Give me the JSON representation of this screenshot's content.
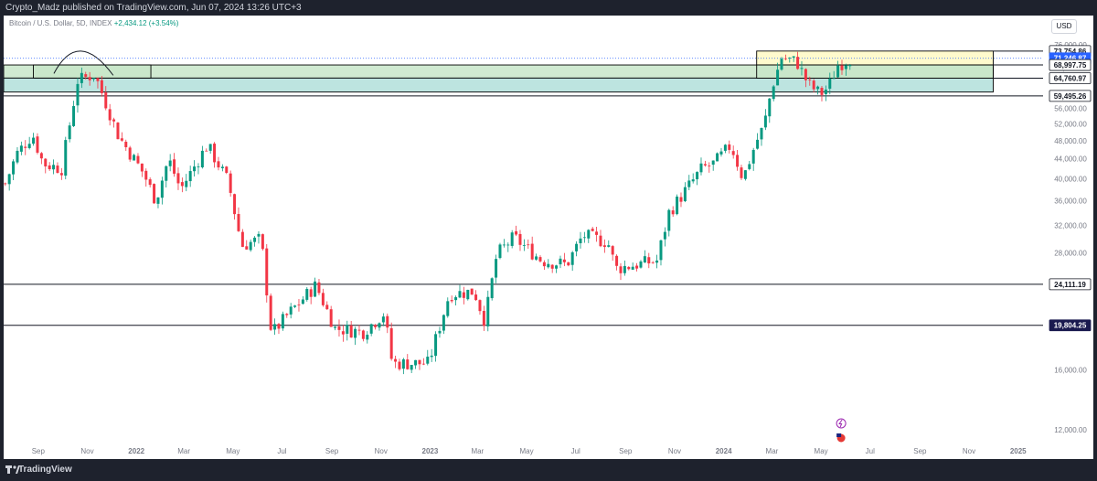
{
  "header": {
    "published_text": "Crypto_Madz published on TradingView.com, Jun 07, 2024 13:26 UTC+3"
  },
  "legend": {
    "symbol": "Bitcoin / U.S. Dollar, 5D, INDEX",
    "change": "+2,434.12 (+3.54%)",
    "change_color": "#089981"
  },
  "currency_button": "USD",
  "footer": {
    "brand": "TradingView"
  },
  "colors": {
    "up": "#089981",
    "down": "#f23645",
    "zone_green": "#c8e6c9",
    "zone_teal": "#b2dfdb",
    "zone_yellow": "#fff9c4",
    "price_label_blue": "#2962ff",
    "price_label_navy": "#1a1a4f"
  },
  "chart_data": {
    "type": "candlestick",
    "title": "Bitcoin / U.S. Dollar, 5D, INDEX",
    "ylim": [
      10000,
      78000
    ],
    "y_scale": "log",
    "y_ticks": [
      "76,000.00",
      "72,000.00",
      "68,000.00",
      "64,000.00",
      "60,000.00",
      "56,000.00",
      "52,000.00",
      "48,000.00",
      "44,000.00",
      "40,000.00",
      "36,000.00",
      "32,000.00",
      "28,000.00",
      "24,000.00",
      "20,000.00",
      "16,000.00",
      "12,000.00"
    ],
    "x_ticks": [
      "Sep",
      "Nov",
      "2022",
      "Mar",
      "May",
      "Jul",
      "Sep",
      "Nov",
      "2023",
      "Mar",
      "May",
      "Jul",
      "Sep",
      "Nov",
      "2024",
      "Mar",
      "May",
      "Jul",
      "Sep",
      "Nov",
      "2025"
    ],
    "x_range": [
      "2021-07-20",
      "2025-02-01"
    ],
    "price_levels": [
      {
        "label": "73,754.86",
        "value": 73754.86,
        "style": "box"
      },
      {
        "label": "71,246.87",
        "value": 71246.87,
        "style": "current"
      },
      {
        "label": "68,997.75",
        "value": 68997.75,
        "style": "box"
      },
      {
        "label": "64,760.97",
        "value": 64760.97,
        "style": "box"
      },
      {
        "label": "59,495.26",
        "value": 59495.26,
        "style": "box"
      },
      {
        "label": "24,111.19",
        "value": 24111.19,
        "style": "box"
      },
      {
        "label": "19,804.25",
        "value": 19804.25,
        "style": "navy"
      }
    ],
    "zones": [
      {
        "color": "green",
        "x0": "2021-07-20",
        "x1": "2024-12-01",
        "y_top": 69000,
        "y_bottom": 64800
      },
      {
        "color": "teal",
        "x0": "2021-07-20",
        "x1": "2024-12-01",
        "y_top": 64800,
        "y_bottom": 60600
      },
      {
        "color": "green",
        "x0": "2021-08-26",
        "x1": "2022-01-19",
        "y_top": 69000,
        "y_bottom": 64800
      },
      {
        "color": "yellow",
        "x0": "2024-02-11",
        "x1": "2024-12-01",
        "y_top": 73754.86,
        "y_bottom": 69000
      },
      {
        "color": "green",
        "x0": "2024-02-11",
        "x1": "2024-12-01",
        "y_top": 69000,
        "y_bottom": 64760.97
      }
    ],
    "anchors": [
      [
        "2021-07-22",
        39000
      ],
      [
        "2021-08-05",
        45000
      ],
      [
        "2021-08-25",
        49500
      ],
      [
        "2021-09-07",
        43000
      ],
      [
        "2021-09-30",
        42000
      ],
      [
        "2021-10-20",
        64000
      ],
      [
        "2021-11-10",
        66000
      ],
      [
        "2021-11-25",
        57000
      ],
      [
        "2021-12-10",
        49000
      ],
      [
        "2022-01-10",
        41000
      ],
      [
        "2022-01-25",
        36000
      ],
      [
        "2022-02-10",
        44000
      ],
      [
        "2022-02-25",
        38000
      ],
      [
        "2022-03-30",
        47000
      ],
      [
        "2022-04-25",
        39500
      ],
      [
        "2022-05-12",
        29000
      ],
      [
        "2022-06-05",
        30000
      ],
      [
        "2022-06-18",
        19000
      ],
      [
        "2022-07-10",
        21000
      ],
      [
        "2022-08-12",
        24000
      ],
      [
        "2022-09-05",
        19500
      ],
      [
        "2022-10-10",
        19200
      ],
      [
        "2022-11-05",
        21000
      ],
      [
        "2022-11-15",
        16500
      ],
      [
        "2022-12-30",
        16500
      ],
      [
        "2023-01-25",
        23000
      ],
      [
        "2023-02-25",
        23300
      ],
      [
        "2023-03-10",
        20200
      ],
      [
        "2023-03-25",
        27800
      ],
      [
        "2023-04-15",
        30200
      ],
      [
        "2023-05-20",
        27000
      ],
      [
        "2023-06-20",
        26500
      ],
      [
        "2023-07-10",
        30500
      ],
      [
        "2023-08-10",
        29500
      ],
      [
        "2023-08-20",
        26000
      ],
      [
        "2023-10-10",
        27000
      ],
      [
        "2023-10-25",
        34000
      ],
      [
        "2023-12-05",
        42000
      ],
      [
        "2023-12-20",
        43000
      ],
      [
        "2024-01-10",
        47000
      ],
      [
        "2024-01-25",
        40000
      ],
      [
        "2024-02-10",
        47500
      ],
      [
        "2024-02-20",
        51500
      ],
      [
        "2024-03-01",
        62000
      ],
      [
        "2024-03-13",
        71500
      ],
      [
        "2024-04-01",
        70000
      ],
      [
        "2024-04-15",
        63000
      ],
      [
        "2024-04-30",
        60000
      ],
      [
        "2024-05-10",
        62000
      ],
      [
        "2024-05-22",
        69000
      ],
      [
        "2024-06-07",
        71246.87
      ]
    ],
    "grid": false,
    "legend_position": "top-left"
  }
}
